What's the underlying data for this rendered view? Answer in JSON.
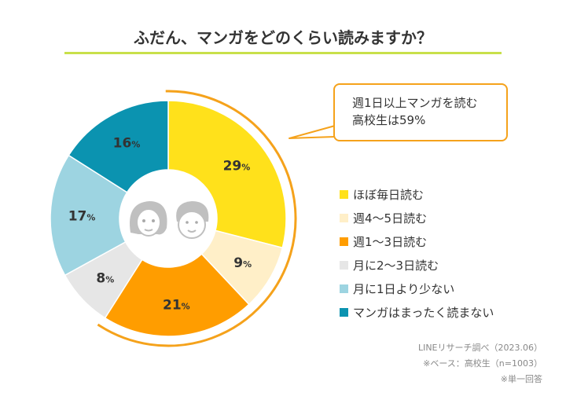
{
  "chart_data": {
    "type": "pie",
    "title": "ふだん、マンガをどのくらい読みますか？",
    "categories": [
      "ほぼ毎日読む",
      "週4〜5日読む",
      "週1〜3日読む",
      "月に2〜3日読む",
      "月に1日より少ない",
      "マンガはまったく読まない"
    ],
    "values": [
      29,
      9,
      21,
      8,
      17,
      16
    ],
    "unit": "%",
    "colors": [
      "#ffe11b",
      "#ffefc8",
      "#ff9d00",
      "#e6e6e6",
      "#9dd4e1",
      "#0b93b0"
    ],
    "legend_placement": "right",
    "highlight_color": "#f5a21b",
    "annotation": [
      "週1日以上マンガを読む",
      "高校生は59%"
    ]
  },
  "center_icons": [
    "woman-face-icon",
    "man-face-icon"
  ],
  "footer": [
    "LINEリサーチ調べ（2023.06）",
    "※ベース：高校生（n=1003）",
    "※単一回答"
  ]
}
